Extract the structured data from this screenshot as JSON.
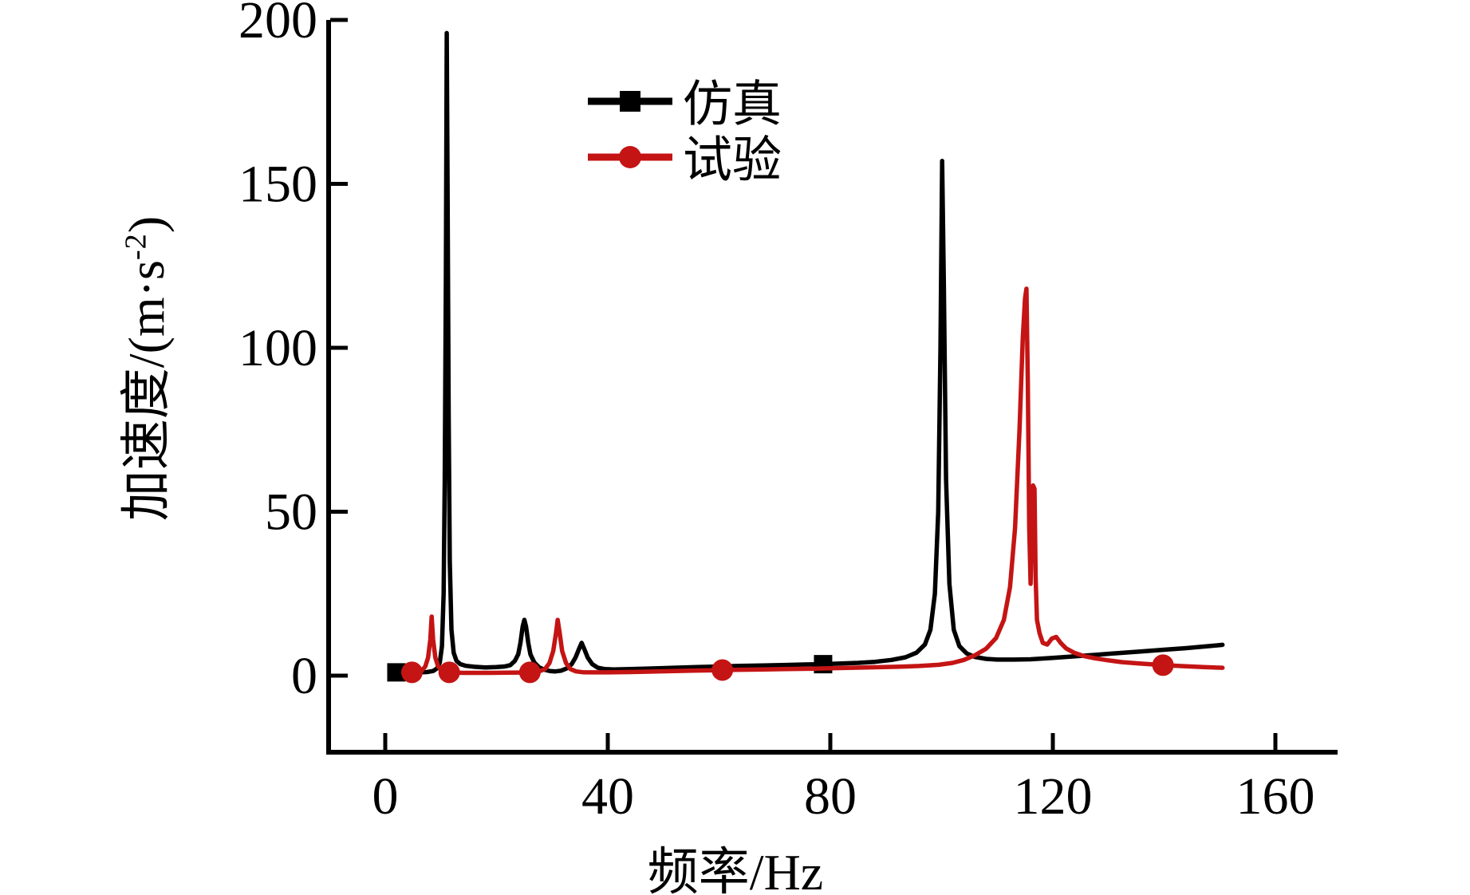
{
  "labels": {
    "ylabel_main": "加速度/(m·s",
    "ylabel_sup": "-2",
    "ylabel_close": ")"
  },
  "chart_data": {
    "type": "line",
    "title": "",
    "xlabel": "频率/Hz",
    "ylabel": "加速度/(m·s⁻²)",
    "xlim": [
      0,
      160
    ],
    "ylim": [
      0,
      200
    ],
    "xticks": [
      0,
      40,
      80,
      120,
      160
    ],
    "yticks": [
      0,
      50,
      100,
      150,
      200
    ],
    "grid": false,
    "legend_position": "upper center-left, inside plot",
    "series": [
      {
        "id": "simulation",
        "name": "仿真",
        "color": "#000000",
        "marker": "square",
        "peaks": [
          {
            "x": 11,
            "y": 196
          },
          {
            "x": 25,
            "y": 17
          },
          {
            "x": 35,
            "y": 10
          },
          {
            "x": 100,
            "y": 157
          }
        ],
        "points": [
          [
            2,
            1
          ],
          [
            4,
            1
          ],
          [
            6,
            1
          ],
          [
            7.5,
            1.1
          ],
          [
            8.6,
            1.4
          ],
          [
            9.3,
            2.2
          ],
          [
            9.8,
            4
          ],
          [
            10.2,
            9
          ],
          [
            10.5,
            25
          ],
          [
            10.7,
            60
          ],
          [
            10.9,
            120
          ],
          [
            11.05,
            196
          ],
          [
            11.2,
            150
          ],
          [
            11.4,
            80
          ],
          [
            11.6,
            35
          ],
          [
            11.9,
            14
          ],
          [
            12.3,
            7
          ],
          [
            12.8,
            4.5
          ],
          [
            13.5,
            3.5
          ],
          [
            14.5,
            3
          ],
          [
            16,
            2.7
          ],
          [
            18,
            2.5
          ],
          [
            20,
            2.6
          ],
          [
            21.5,
            2.8
          ],
          [
            22.5,
            3.2
          ],
          [
            23.3,
            4.5
          ],
          [
            23.9,
            6.5
          ],
          [
            24.3,
            10
          ],
          [
            24.7,
            15
          ],
          [
            25,
            17
          ],
          [
            25.3,
            15
          ],
          [
            25.7,
            10
          ],
          [
            26.1,
            6.5
          ],
          [
            26.8,
            4
          ],
          [
            27.6,
            2.6
          ],
          [
            28.6,
            1.8
          ],
          [
            29.6,
            1.4
          ],
          [
            30.6,
            1.3
          ],
          [
            31.6,
            1.5
          ],
          [
            32.6,
            2.2
          ],
          [
            33.5,
            3.5
          ],
          [
            34.2,
            5.5
          ],
          [
            34.8,
            8
          ],
          [
            35.3,
            10
          ],
          [
            35.8,
            8
          ],
          [
            36.4,
            5.5
          ],
          [
            37.2,
            3.5
          ],
          [
            38.2,
            2.4
          ],
          [
            39.5,
            2
          ],
          [
            41,
            1.9
          ],
          [
            44,
            2
          ],
          [
            48,
            2.2
          ],
          [
            52,
            2.4
          ],
          [
            56,
            2.6
          ],
          [
            60,
            2.8
          ],
          [
            64,
            3
          ],
          [
            68,
            3.1
          ],
          [
            72,
            3.25
          ],
          [
            75.5,
            3.4
          ],
          [
            78.7,
            3.5
          ],
          [
            82,
            3.7
          ],
          [
            85,
            3.9
          ],
          [
            88,
            4.2
          ],
          [
            91,
            4.8
          ],
          [
            93.5,
            5.6
          ],
          [
            95.5,
            7
          ],
          [
            97,
            9.5
          ],
          [
            98,
            14
          ],
          [
            98.8,
            25
          ],
          [
            99.4,
            50
          ],
          [
            99.8,
            100
          ],
          [
            100.1,
            157
          ],
          [
            100.4,
            120
          ],
          [
            100.8,
            60
          ],
          [
            101.4,
            28
          ],
          [
            102.2,
            14
          ],
          [
            103.2,
            9
          ],
          [
            104.5,
            6.8
          ],
          [
            106,
            5.7
          ],
          [
            108,
            5.1
          ],
          [
            110,
            4.9
          ],
          [
            113,
            4.9
          ],
          [
            116,
            5
          ],
          [
            120,
            5.4
          ],
          [
            124,
            5.9
          ],
          [
            128,
            6.4
          ],
          [
            132,
            6.9
          ],
          [
            136,
            7.4
          ],
          [
            140,
            7.9
          ],
          [
            144,
            8.4
          ],
          [
            148,
            9
          ],
          [
            150.5,
            9.4
          ]
        ],
        "marker_points": [
          [
            2,
            1
          ],
          [
            78.7,
            3.5
          ]
        ]
      },
      {
        "id": "test",
        "name": "试验",
        "color": "#c41414",
        "marker": "circle",
        "peaks": [
          {
            "x": 8.4,
            "y": 18
          },
          {
            "x": 31,
            "y": 17
          },
          {
            "x": 115.3,
            "y": 118
          }
        ],
        "points": [
          [
            3.6,
            1
          ],
          [
            4.8,
            1
          ],
          [
            5.8,
            1.1
          ],
          [
            6.6,
            1.6
          ],
          [
            7.2,
            2.8
          ],
          [
            7.7,
            5.5
          ],
          [
            8.1,
            11
          ],
          [
            8.35,
            18
          ],
          [
            8.6,
            11
          ],
          [
            9,
            5.5
          ],
          [
            9.5,
            2.8
          ],
          [
            10.2,
            1.6
          ],
          [
            11,
            1.1
          ],
          [
            11.5,
            1
          ],
          [
            12.5,
            0.9
          ],
          [
            14,
            0.85
          ],
          [
            16,
            0.85
          ],
          [
            19,
            0.85
          ],
          [
            22,
            0.9
          ],
          [
            24.5,
            0.95
          ],
          [
            26,
            1
          ],
          [
            27.5,
            1.2
          ],
          [
            28.7,
            2
          ],
          [
            29.5,
            3.8
          ],
          [
            30.2,
            7.5
          ],
          [
            30.7,
            13
          ],
          [
            31,
            17
          ],
          [
            31.35,
            13
          ],
          [
            31.8,
            7.5
          ],
          [
            32.5,
            3.8
          ],
          [
            33.3,
            2
          ],
          [
            34.3,
            1.3
          ],
          [
            35.5,
            1.05
          ],
          [
            37.5,
            1
          ],
          [
            40,
            1
          ],
          [
            44,
            1.1
          ],
          [
            48,
            1.25
          ],
          [
            52,
            1.4
          ],
          [
            56,
            1.55
          ],
          [
            58.5,
            1.6
          ],
          [
            60.6,
            1.7
          ],
          [
            64,
            1.8
          ],
          [
            68,
            1.9
          ],
          [
            72,
            2
          ],
          [
            76,
            2.1
          ],
          [
            80,
            2.25
          ],
          [
            84,
            2.4
          ],
          [
            88,
            2.55
          ],
          [
            92,
            2.7
          ],
          [
            96,
            2.95
          ],
          [
            99.5,
            3.3
          ],
          [
            102,
            3.9
          ],
          [
            104,
            4.8
          ],
          [
            106,
            6.2
          ],
          [
            108,
            8.2
          ],
          [
            109.8,
            11.5
          ],
          [
            111.2,
            17
          ],
          [
            112.3,
            27
          ],
          [
            113.2,
            45
          ],
          [
            114,
            75
          ],
          [
            114.6,
            103
          ],
          [
            115,
            115
          ],
          [
            115.25,
            118
          ],
          [
            115.5,
            90
          ],
          [
            115.75,
            45
          ],
          [
            116,
            28
          ],
          [
            116.2,
            45
          ],
          [
            116.45,
            58
          ],
          [
            116.7,
            57
          ],
          [
            116.9,
            30
          ],
          [
            117.15,
            17
          ],
          [
            117.6,
            13
          ],
          [
            118.2,
            10
          ],
          [
            119,
            9.5
          ],
          [
            119.8,
            11.3
          ],
          [
            120.6,
            11.8
          ],
          [
            121.4,
            10
          ],
          [
            122.4,
            8.3
          ],
          [
            123.8,
            7
          ],
          [
            125.5,
            6
          ],
          [
            127.5,
            5.3
          ],
          [
            129.8,
            4.7
          ],
          [
            132.5,
            4.1
          ],
          [
            135.5,
            3.7
          ],
          [
            139.8,
            3.2
          ],
          [
            143.5,
            2.9
          ],
          [
            147,
            2.6
          ],
          [
            150.5,
            2.4
          ]
        ],
        "marker_points": [
          [
            4.8,
            1
          ],
          [
            11.5,
            1
          ],
          [
            26,
            1
          ],
          [
            60.6,
            1.7
          ],
          [
            139.8,
            3.2
          ]
        ]
      }
    ]
  }
}
